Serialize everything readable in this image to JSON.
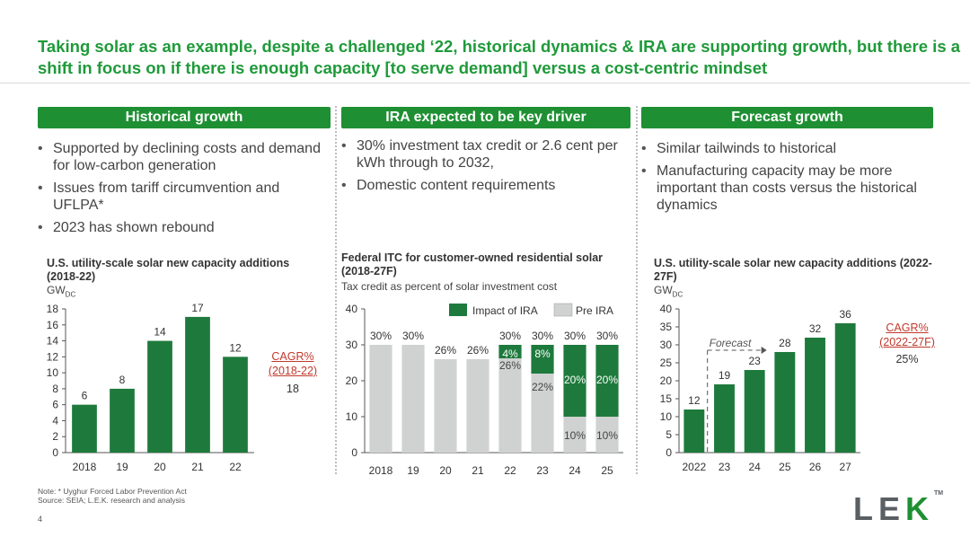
{
  "title": "Taking solar as an example, despite a challenged ‘22, historical dynamics & IRA are supporting growth, but there is a shift in focus on if there is enough capacity [to serve demand] versus a cost-centric mindset",
  "columns": [
    {
      "header": "Historical growth",
      "bullets": [
        "Supported by declining costs and demand for low-carbon generation",
        "Issues from tariff circumvention and UFLPA*",
        "2023 has shown rebound"
      ]
    },
    {
      "header": "IRA expected to be key driver",
      "bullets": [
        "30% investment tax credit or 2.6 cent per kWh through to 2032,",
        "Domestic content requirements"
      ]
    },
    {
      "header": "Forecast growth",
      "bullets": [
        "Similar tailwinds to historical",
        "Manufacturing capacity may be more important than costs versus the historical dynamics"
      ]
    }
  ],
  "chart_data": [
    {
      "type": "bar",
      "title": "U.S. utility-scale solar new capacity additions (2018-22)",
      "unit": "GW",
      "unit_sub": "DC",
      "categories": [
        "2018",
        "19",
        "20",
        "21",
        "22"
      ],
      "values": [
        6,
        8,
        14,
        17,
        12
      ],
      "ylim": [
        0,
        18
      ],
      "yticks": [
        0,
        2,
        4,
        6,
        8,
        10,
        12,
        14,
        16,
        18
      ],
      "bar_color": "#1e7a3c",
      "cagr_label": "CAGR%",
      "cagr_period": "(2018-22)",
      "cagr_value": "18"
    },
    {
      "type": "bar",
      "stacked": true,
      "title": "Federal ITC for customer-owned residential solar (2018-27F)",
      "subtitle": "Tax credit as percent of solar investment cost",
      "categories": [
        "2018",
        "19",
        "20",
        "21",
        "22",
        "23",
        "24",
        "25"
      ],
      "ylim": [
        0,
        40
      ],
      "yticks": [
        0,
        10,
        20,
        30,
        40
      ],
      "series": [
        {
          "name": "Pre IRA",
          "color": "#d0d2d1",
          "values": [
            30,
            30,
            26,
            26,
            26,
            22,
            10,
            10
          ],
          "labels": [
            "",
            "",
            "",
            "",
            "26%",
            "22%",
            "10%",
            "10%"
          ]
        },
        {
          "name": "Impact of IRA",
          "color": "#1e7a3c",
          "values": [
            0,
            0,
            0,
            0,
            4,
            8,
            20,
            20
          ],
          "labels": [
            "",
            "",
            "",
            "",
            "4%",
            "8%",
            "20%",
            "20%"
          ]
        }
      ],
      "totals": [
        "30%",
        "30%",
        "26%",
        "26%",
        "30%",
        "30%",
        "30%",
        "30%"
      ]
    },
    {
      "type": "bar",
      "title": "U.S. utility-scale solar new capacity additions (2022-27F)",
      "unit": "GW",
      "unit_sub": "DC",
      "categories": [
        "2022",
        "23",
        "24",
        "25",
        "26",
        "27"
      ],
      "values": [
        12,
        19,
        23,
        28,
        32,
        36
      ],
      "ylim": [
        0,
        40
      ],
      "yticks": [
        0,
        5,
        10,
        15,
        20,
        25,
        30,
        35,
        40
      ],
      "bar_color": "#1e7a3c",
      "annotation": "Forecast",
      "cagr_label": "CAGR%",
      "cagr_period": "(2022-27F)",
      "cagr_value": "25%"
    }
  ],
  "footer": {
    "note": "Note:     * Uyghur Forced Labor Prevention Act",
    "source": "Source: SEIA; L.E.K. research and analysis",
    "page": "4",
    "logo": "LEK",
    "trademark": "TM"
  }
}
